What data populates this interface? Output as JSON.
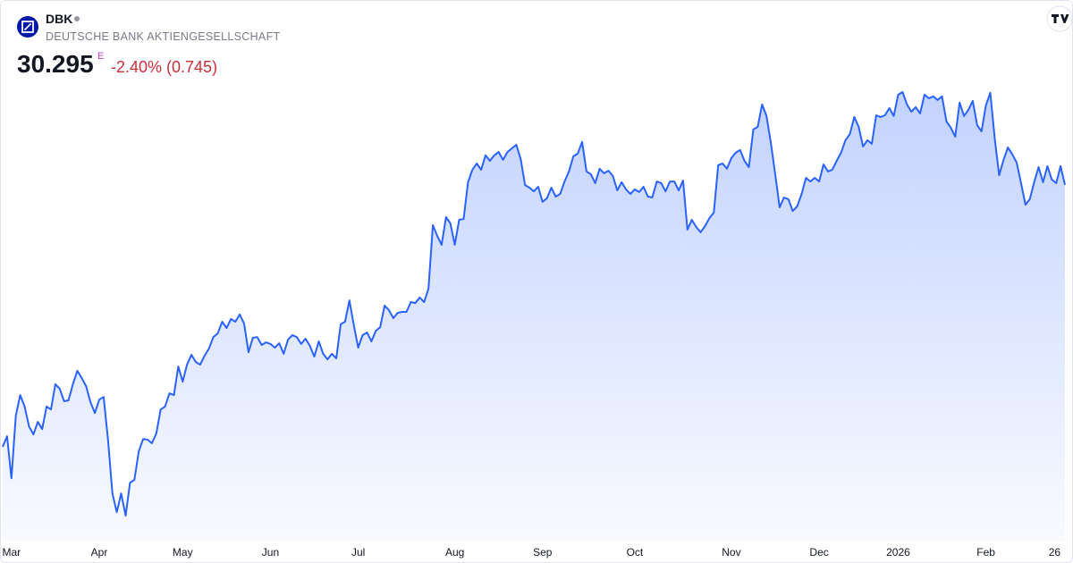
{
  "header": {
    "symbol": "DBK",
    "name": "DEUTSCHE BANK AKTIENGESELLSCHAFT",
    "price": "30.295",
    "marker": "E",
    "change": "-2.40% (0.745)"
  },
  "chart_data": {
    "type": "area",
    "color": "#2962ff",
    "values": [
      19.37,
      19.81,
      18.06,
      20.67,
      21.53,
      21.05,
      20.22,
      19.89,
      20.41,
      20.11,
      21.05,
      20.93,
      21.98,
      21.79,
      21.27,
      21.31,
      21.98,
      22.54,
      22.24,
      21.9,
      21.23,
      20.78,
      21.34,
      21.45,
      19.67,
      17.43,
      16.64,
      17.43,
      16.5,
      17.87,
      17.99,
      19.18,
      19.7,
      19.67,
      19.52,
      19.93,
      20.93,
      21.05,
      21.6,
      21.53,
      22.72,
      22.09,
      22.8,
      23.21,
      22.91,
      22.8,
      23.17,
      23.47,
      23.95,
      24.1,
      24.59,
      24.33,
      24.7,
      24.59,
      24.89,
      24.51,
      23.32,
      23.92,
      23.95,
      23.62,
      23.73,
      23.66,
      23.51,
      23.69,
      23.25,
      23.84,
      24.03,
      23.95,
      23.66,
      23.88,
      23.58,
      23.13,
      23.77,
      23.25,
      23.02,
      23.25,
      23.06,
      24.48,
      24.59,
      25.48,
      24.44,
      23.51,
      24.03,
      24.14,
      23.77,
      24.21,
      24.36,
      25.26,
      25.07,
      24.74,
      24.96,
      25.0,
      25.0,
      25.41,
      25.37,
      25.6,
      25.41,
      25.97,
      28.62,
      28.17,
      27.8,
      28.95,
      28.69,
      27.8,
      28.84,
      28.88,
      30.41,
      30.93,
      31.19,
      30.93,
      31.53,
      31.3,
      31.53,
      31.67,
      31.34,
      31.67,
      31.82,
      31.97,
      31.38,
      30.29,
      30.18,
      30.03,
      30.22,
      29.59,
      29.74,
      30.18,
      29.81,
      29.92,
      30.44,
      30.86,
      31.49,
      31.6,
      32.09,
      30.86,
      30.74,
      30.37,
      30.97,
      30.78,
      30.89,
      30.67,
      30.07,
      30.41,
      30.11,
      29.92,
      30.11,
      30.0,
      30.22,
      29.81,
      29.77,
      30.44,
      30.37,
      30.03,
      30.44,
      30.44,
      30.07,
      30.48,
      28.43,
      28.84,
      28.54,
      28.32,
      28.58,
      28.91,
      29.14,
      31.12,
      31.19,
      30.97,
      31.41,
      31.64,
      31.75,
      31.3,
      31.04,
      32.61,
      32.72,
      33.65,
      33.17,
      32.05,
      30.74,
      29.36,
      29.77,
      29.7,
      29.21,
      29.4,
      29.92,
      30.59,
      30.44,
      30.59,
      30.44,
      31.15,
      30.86,
      30.93,
      31.3,
      31.64,
      32.16,
      32.42,
      33.13,
      32.72,
      31.9,
      32.16,
      32.01,
      33.2,
      33.13,
      33.2,
      33.5,
      33.17,
      34.06,
      34.17,
      33.65,
      33.35,
      33.54,
      33.28,
      34.06,
      33.91,
      33.99,
      33.84,
      33.99,
      32.94,
      32.68,
      32.31,
      33.73,
      33.17,
      33.43,
      33.8,
      32.79,
      32.53,
      33.62,
      34.14,
      32.23,
      30.7,
      31.34,
      31.86,
      31.57,
      31.23,
      30.37,
      29.47,
      29.7,
      30.41,
      31.04,
      30.41,
      31.08,
      30.52,
      30.37,
      31.08,
      30.295
    ],
    "xticks": [
      {
        "value": 2,
        "label": "Mar"
      },
      {
        "value": 22,
        "label": "Apr"
      },
      {
        "value": 41,
        "label": "May"
      },
      {
        "value": 61,
        "label": "Jun"
      },
      {
        "value": 81,
        "label": "Jul"
      },
      {
        "value": 103,
        "label": "Aug"
      },
      {
        "value": 123,
        "label": "Sep"
      },
      {
        "value": 144,
        "label": "Oct"
      },
      {
        "value": 166,
        "label": "Nov"
      },
      {
        "value": 186,
        "label": "Dec"
      },
      {
        "value": 204,
        "label": "2026"
      },
      {
        "value": 224,
        "label": "Feb"
      },
      {
        "value": 241,
        "label": "26"
      }
    ]
  }
}
